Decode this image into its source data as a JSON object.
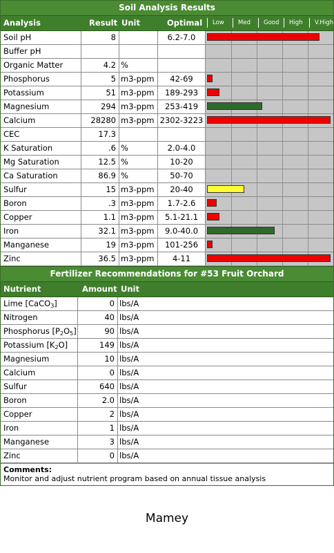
{
  "soil": {
    "title": "Soil Analysis Results",
    "headers": {
      "analysis": "Analysis",
      "result": "Result",
      "unit": "Unit",
      "optimal": "Optimal"
    },
    "scale": [
      "Low",
      "Med",
      "Good",
      "High",
      "V.High"
    ],
    "rows": [
      {
        "name": "Soil pH",
        "result": "8",
        "unit": "",
        "optimal": "6.2-7.0",
        "level": 0.9,
        "color": "#ee0000"
      },
      {
        "name": "Buffer pH",
        "result": "",
        "unit": "",
        "optimal": "",
        "level": 0,
        "color": ""
      },
      {
        "name": "Organic Matter",
        "result": "4.2",
        "unit": "%",
        "optimal": "",
        "level": 0,
        "color": ""
      },
      {
        "name": "Phosphorus",
        "result": "5",
        "unit": "m3-ppm",
        "optimal": "42-69",
        "level": 0.045,
        "color": "#ee0000"
      },
      {
        "name": "Potassium",
        "result": "51",
        "unit": "m3-ppm",
        "optimal": "189-293",
        "level": 0.1,
        "color": "#ee0000"
      },
      {
        "name": "Magnesium",
        "result": "294",
        "unit": "m3-ppm",
        "optimal": "253-419",
        "level": 0.44,
        "color": "#2e6b2a"
      },
      {
        "name": "Calcium",
        "result": "28280",
        "unit": "m3-ppm",
        "optimal": "2302-3223",
        "level": 0.99,
        "color": "#ee0000"
      },
      {
        "name": "CEC",
        "result": "17.3",
        "unit": "",
        "optimal": "",
        "level": 0,
        "color": ""
      },
      {
        "name": "K Saturation",
        "result": ".6",
        "unit": "%",
        "optimal": "2.0-4.0",
        "level": 0,
        "color": ""
      },
      {
        "name": "Mg Saturation",
        "result": "12.5",
        "unit": "%",
        "optimal": "10-20",
        "level": 0,
        "color": ""
      },
      {
        "name": "Ca Saturation",
        "result": "86.9",
        "unit": "%",
        "optimal": "50-70",
        "level": 0,
        "color": ""
      },
      {
        "name": "Sulfur",
        "result": "15",
        "unit": "m3-ppm",
        "optimal": "20-40",
        "level": 0.3,
        "color": "#ffff33"
      },
      {
        "name": "Boron",
        "result": ".3",
        "unit": "m3-ppm",
        "optimal": "1.7-2.6",
        "level": 0.08,
        "color": "#ee0000"
      },
      {
        "name": "Copper",
        "result": "1.1",
        "unit": "m3-ppm",
        "optimal": "5.1-21.1",
        "level": 0.1,
        "color": "#ee0000"
      },
      {
        "name": "Iron",
        "result": "32.1",
        "unit": "m3-ppm",
        "optimal": "9.0-40.0",
        "level": 0.54,
        "color": "#2e6b2a"
      },
      {
        "name": "Manganese",
        "result": "19",
        "unit": "m3-ppm",
        "optimal": "101-256",
        "level": 0.045,
        "color": "#ee0000"
      },
      {
        "name": "Zinc",
        "result": "36.5",
        "unit": "m3-ppm",
        "optimal": "4-11",
        "level": 0.99,
        "color": "#ee0000"
      }
    ]
  },
  "fert": {
    "title": "Fertilizer Recommendations for #53 Fruit Orchard",
    "headers": {
      "nutrient": "Nutrient",
      "amount": "Amount",
      "unit": "Unit"
    },
    "rows": [
      {
        "name": "Lime [CaCO",
        "sub": "3",
        "tail": "]",
        "amount": "0",
        "unit": "lbs/A"
      },
      {
        "name": "Nitrogen",
        "sub": "",
        "tail": "",
        "amount": "40",
        "unit": "lbs/A"
      },
      {
        "name": "Phosphorus [P",
        "sub": "2",
        "tail": "O",
        "sub2": "5",
        "tail2": "]",
        "amount": "90",
        "unit": "lbs/A"
      },
      {
        "name": "Potassium [K",
        "sub": "2",
        "tail": "O]",
        "amount": "149",
        "unit": "lbs/A"
      },
      {
        "name": "Magnesium",
        "sub": "",
        "tail": "",
        "amount": "10",
        "unit": "lbs/A"
      },
      {
        "name": "Calcium",
        "sub": "",
        "tail": "",
        "amount": "0",
        "unit": "lbs/A"
      },
      {
        "name": "Sulfur",
        "sub": "",
        "tail": "",
        "amount": "640",
        "unit": "lbs/A"
      },
      {
        "name": "Boron",
        "sub": "",
        "tail": "",
        "amount": "2.0",
        "unit": "lbs/A"
      },
      {
        "name": "Copper",
        "sub": "",
        "tail": "",
        "amount": "2",
        "unit": "lbs/A"
      },
      {
        "name": "Iron",
        "sub": "",
        "tail": "",
        "amount": "1",
        "unit": "lbs/A"
      },
      {
        "name": "Manganese",
        "sub": "",
        "tail": "",
        "amount": "3",
        "unit": "lbs/A"
      },
      {
        "name": "Zinc",
        "sub": "",
        "tail": "",
        "amount": "0",
        "unit": "lbs/A"
      }
    ],
    "comments_label": "Comments:",
    "comments_text": "Monitor and adjust nutrient program based on annual tissue analysis"
  },
  "footer": "Mamey"
}
